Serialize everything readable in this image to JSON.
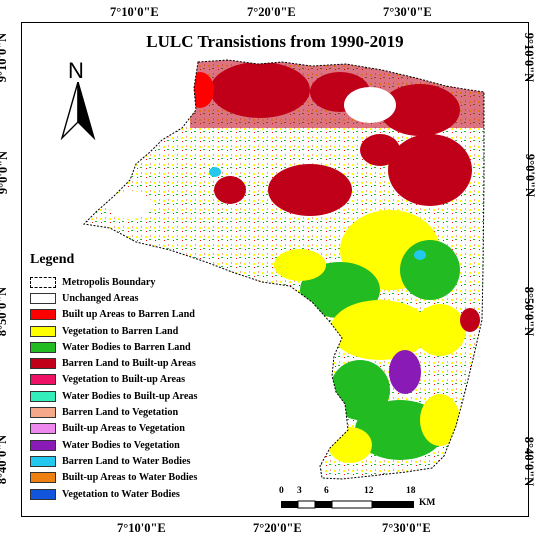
{
  "title": "LULC Transistions from 1990-2019",
  "coords": {
    "top": [
      "7°10'0\"E",
      "7°20'0\"E",
      "7°30'0\"E"
    ],
    "bottom": [
      "7°10'0\"E",
      "7°20'0\"E",
      "7°30'0\"E"
    ],
    "left": [
      "9°10'0\"N",
      "9°0'0\"N",
      "8°50'0\"N",
      "8°40'0\"N"
    ],
    "right": [
      "9°10'0\"N",
      "9°0'0\"N",
      "8°50'0\"N",
      "8°40'0\"N"
    ]
  },
  "north_arrow": {
    "label": "N"
  },
  "legend": {
    "title": "Legend",
    "items": [
      {
        "label": "Metropolis Boundary",
        "color": "boundary"
      },
      {
        "label": "Unchanged Areas",
        "color": "#ffffff"
      },
      {
        "label": "Built up Areas to Barren Land",
        "color": "#ff0000"
      },
      {
        "label": "Vegetation to Barren Land",
        "color": "#ffff00"
      },
      {
        "label": "Water Bodies to Barren Land",
        "color": "#22bb22"
      },
      {
        "label": "Barren Land to Built-up Areas",
        "color": "#c00018"
      },
      {
        "label": "Vegetation to Built-up Areas",
        "color": "#ee1166"
      },
      {
        "label": "Water Bodies to Built-up Areas",
        "color": "#33eebb"
      },
      {
        "label": "Barren Land to Vegetation",
        "color": "#f5a98a"
      },
      {
        "label": "Built-up Areas to Vegetation",
        "color": "#ee88ee"
      },
      {
        "label": "Water Bodies to Vegetation",
        "color": "#8a1ab5"
      },
      {
        "label": "Barren Land to Water Bodies",
        "color": "#22c8ee"
      },
      {
        "label": "Built-up Areas to Water Bodies",
        "color": "#ee7f11"
      },
      {
        "label": "Vegetation to Water Bodies",
        "color": "#1155dd"
      }
    ]
  },
  "scale": {
    "ticks": [
      "0",
      "3",
      "6",
      "12",
      "18"
    ],
    "unit": "KM"
  }
}
